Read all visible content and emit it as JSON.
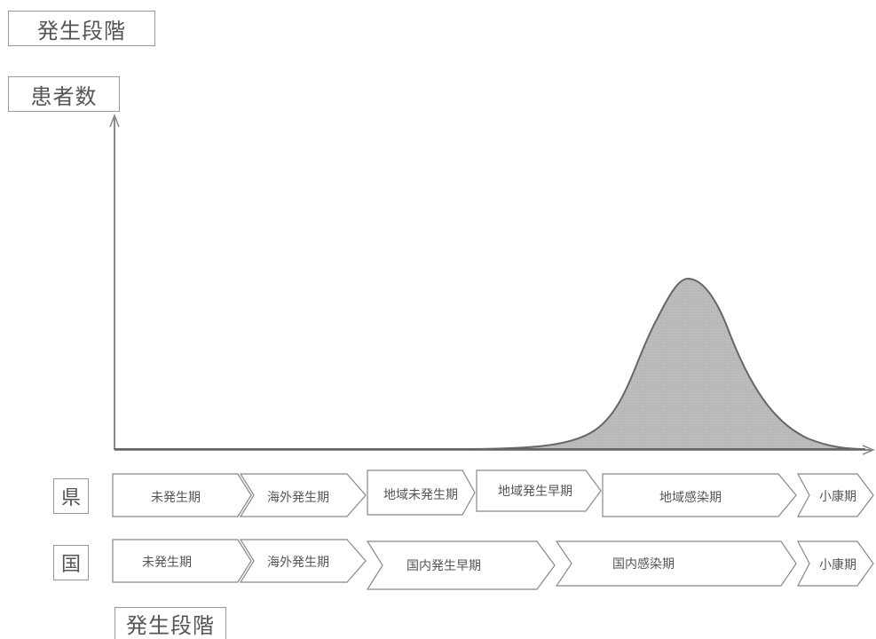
{
  "title": "発生段階",
  "y_axis_label": "患者数",
  "footer_label": "発生段階",
  "rows": [
    {
      "label": "県",
      "phases": [
        "未発生期",
        "海外発生期",
        "地域未発生期",
        "地域発生早期",
        "地域感染期",
        "小康期"
      ]
    },
    {
      "label": "国",
      "phases": [
        "未発生期",
        "海外発生期",
        "国内発生早期",
        "国内感染期",
        "小康期"
      ]
    }
  ],
  "colors": {
    "curve_fill": "#b9b9b9",
    "curve_stroke": "#666666",
    "axis": "#888888",
    "box_border": "#9a9a9a"
  }
}
